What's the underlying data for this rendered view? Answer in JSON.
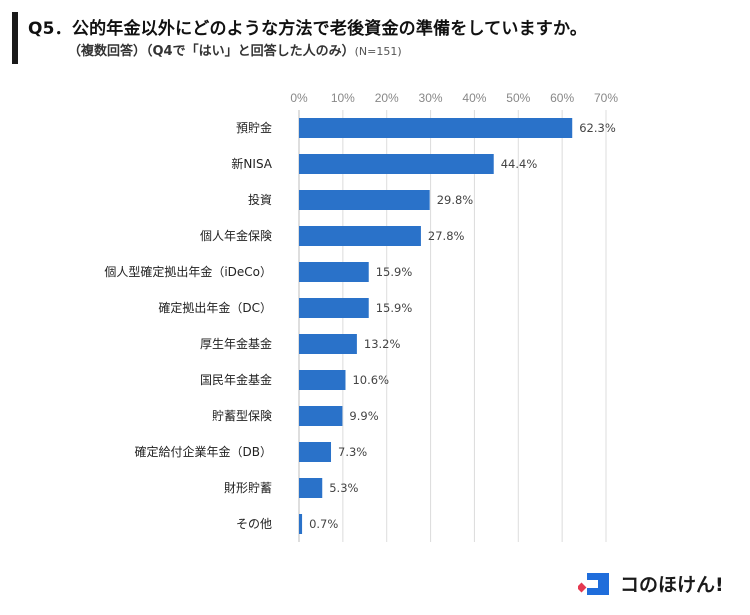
{
  "header": {
    "title": "Q5．公的年金以外にどのような方法で老後資金の準備をしていますか。",
    "subtitle": "（複数回答）（Q4で「はい」と回答した人のみ）",
    "sample_size": "(N=151)"
  },
  "logo": {
    "text": "コのほけん!",
    "icon": "kono-hoken-logo-icon",
    "colors": [
      "#e53950",
      "#1f6ddb"
    ]
  },
  "chart_data": {
    "type": "bar",
    "orientation": "horizontal",
    "title": "Q5．公的年金以外にどのような方法で老後資金の準備をしていますか。",
    "xlim": [
      0,
      70
    ],
    "ticks": [
      0,
      10,
      20,
      30,
      40,
      50,
      60,
      70
    ],
    "tick_labels": [
      "0%",
      "10%",
      "20%",
      "30%",
      "40%",
      "50%",
      "60%",
      "70%"
    ],
    "grid": true,
    "bar_color": "#2a72c9",
    "categories": [
      "預貯金",
      "新NISA",
      "投資",
      "個人年金保険",
      "個人型確定拠出年金（iDeCo）",
      "確定拠出年金（DC）",
      "厚生年金基金",
      "国民年金基金",
      "貯蓄型保険",
      "確定給付企業年金（DB）",
      "財形貯蓄",
      "その他"
    ],
    "values": [
      62.3,
      44.4,
      29.8,
      27.8,
      15.9,
      15.9,
      13.2,
      10.6,
      9.9,
      7.3,
      5.3,
      0.7
    ],
    "value_labels": [
      "62.3%",
      "44.4%",
      "29.8%",
      "27.8%",
      "15.9%",
      "15.9%",
      "13.2%",
      "10.6%",
      "9.9%",
      "7.3%",
      "5.3%",
      "0.7%"
    ]
  }
}
